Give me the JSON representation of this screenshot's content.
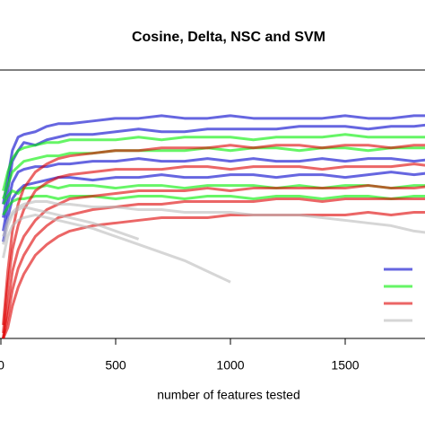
{
  "chart_data": {
    "type": "line",
    "title": "Cosine, Delta, NSC and SVM",
    "x_label": "number of features tested",
    "x": [
      10,
      30,
      50,
      75,
      100,
      150,
      200,
      250,
      300,
      400,
      500,
      600,
      700,
      800,
      900,
      1000,
      1100,
      1200,
      1300,
      1400,
      1500,
      1600,
      1700,
      1800,
      1900
    ],
    "xlim": [
      0,
      1850
    ],
    "xticks": [
      0,
      500,
      1000,
      1500
    ],
    "ylim": [
      0,
      1
    ],
    "legend_colors": [
      "#0000cc",
      "#00ee00",
      "#dd0000",
      "#bbbbbb"
    ],
    "series": [
      {
        "color": "#0000cc",
        "values": [
          0.5,
          0.6,
          0.7,
          0.75,
          0.76,
          0.77,
          0.79,
          0.8,
          0.8,
          0.81,
          0.82,
          0.82,
          0.83,
          0.82,
          0.82,
          0.83,
          0.82,
          0.82,
          0.82,
          0.82,
          0.83,
          0.82,
          0.82,
          0.83,
          0.83
        ]
      },
      {
        "color": "#0000cc",
        "values": [
          0.45,
          0.55,
          0.66,
          0.7,
          0.73,
          0.72,
          0.74,
          0.75,
          0.76,
          0.76,
          0.77,
          0.78,
          0.77,
          0.77,
          0.78,
          0.78,
          0.78,
          0.78,
          0.79,
          0.79,
          0.79,
          0.78,
          0.79,
          0.79,
          0.8
        ]
      },
      {
        "color": "#0000cc",
        "values": [
          0.4,
          0.5,
          0.58,
          0.62,
          0.63,
          0.64,
          0.64,
          0.65,
          0.65,
          0.66,
          0.66,
          0.67,
          0.66,
          0.66,
          0.67,
          0.66,
          0.67,
          0.66,
          0.66,
          0.67,
          0.66,
          0.67,
          0.67,
          0.66,
          0.67
        ]
      },
      {
        "color": "#0000cc",
        "values": [
          0.36,
          0.45,
          0.52,
          0.55,
          0.57,
          0.58,
          0.59,
          0.6,
          0.6,
          0.59,
          0.6,
          0.6,
          0.61,
          0.6,
          0.6,
          0.61,
          0.61,
          0.6,
          0.61,
          0.61,
          0.6,
          0.61,
          0.62,
          0.61,
          0.62
        ]
      },
      {
        "color": "#00ee00",
        "values": [
          0.55,
          0.62,
          0.67,
          0.7,
          0.71,
          0.72,
          0.73,
          0.73,
          0.74,
          0.74,
          0.74,
          0.75,
          0.74,
          0.75,
          0.75,
          0.75,
          0.74,
          0.75,
          0.75,
          0.75,
          0.76,
          0.75,
          0.75,
          0.75,
          0.75
        ]
      },
      {
        "color": "#00ee00",
        "values": [
          0.52,
          0.57,
          0.62,
          0.64,
          0.66,
          0.67,
          0.68,
          0.68,
          0.69,
          0.69,
          0.7,
          0.7,
          0.7,
          0.7,
          0.71,
          0.7,
          0.71,
          0.71,
          0.7,
          0.71,
          0.71,
          0.7,
          0.71,
          0.71,
          0.71
        ]
      },
      {
        "color": "#00ee00",
        "values": [
          0.5,
          0.53,
          0.55,
          0.54,
          0.56,
          0.56,
          0.57,
          0.56,
          0.57,
          0.57,
          0.56,
          0.57,
          0.57,
          0.56,
          0.57,
          0.57,
          0.57,
          0.56,
          0.57,
          0.56,
          0.57,
          0.57,
          0.56,
          0.57,
          0.57
        ]
      },
      {
        "color": "#00ee00",
        "values": [
          0.46,
          0.49,
          0.51,
          0.52,
          0.52,
          0.53,
          0.53,
          0.52,
          0.53,
          0.53,
          0.52,
          0.53,
          0.53,
          0.52,
          0.53,
          0.53,
          0.52,
          0.53,
          0.53,
          0.52,
          0.53,
          0.53,
          0.52,
          0.53,
          0.53
        ]
      },
      {
        "color": "#dd0000",
        "values": [
          0.05,
          0.25,
          0.4,
          0.5,
          0.56,
          0.62,
          0.65,
          0.67,
          0.68,
          0.69,
          0.7,
          0.7,
          0.71,
          0.71,
          0.71,
          0.72,
          0.71,
          0.72,
          0.72,
          0.71,
          0.72,
          0.72,
          0.71,
          0.72,
          0.72
        ]
      },
      {
        "color": "#dd0000",
        "values": [
          0.02,
          0.2,
          0.33,
          0.42,
          0.48,
          0.55,
          0.58,
          0.6,
          0.61,
          0.62,
          0.63,
          0.63,
          0.63,
          0.64,
          0.64,
          0.63,
          0.64,
          0.64,
          0.64,
          0.63,
          0.64,
          0.64,
          0.64,
          0.65,
          0.64
        ]
      },
      {
        "color": "#dd0000",
        "values": [
          0.0,
          0.12,
          0.25,
          0.33,
          0.38,
          0.44,
          0.48,
          0.5,
          0.52,
          0.53,
          0.54,
          0.55,
          0.55,
          0.55,
          0.56,
          0.55,
          0.56,
          0.56,
          0.56,
          0.56,
          0.56,
          0.57,
          0.56,
          0.56,
          0.57
        ]
      },
      {
        "color": "#dd0000",
        "values": [
          0.0,
          0.08,
          0.18,
          0.26,
          0.31,
          0.38,
          0.42,
          0.45,
          0.46,
          0.48,
          0.49,
          0.5,
          0.5,
          0.51,
          0.51,
          0.51,
          0.51,
          0.52,
          0.52,
          0.51,
          0.52,
          0.52,
          0.52,
          0.52,
          0.52
        ]
      },
      {
        "color": "#dd0000",
        "values": [
          0.0,
          0.04,
          0.12,
          0.19,
          0.24,
          0.31,
          0.35,
          0.38,
          0.4,
          0.42,
          0.43,
          0.44,
          0.45,
          0.45,
          0.45,
          0.46,
          0.46,
          0.46,
          0.46,
          0.46,
          0.46,
          0.47,
          0.46,
          0.47,
          0.47
        ]
      },
      {
        "color": "#bbbbbb",
        "values": [
          0.3,
          0.38,
          0.42,
          0.44,
          0.45,
          0.46,
          0.45,
          0.44,
          0.43,
          0.41,
          0.38,
          0.35,
          0.32,
          0.29,
          0.25,
          0.21,
          null,
          null,
          null,
          null,
          null,
          null,
          null,
          null,
          null
        ]
      },
      {
        "color": "#bbbbbb",
        "values": [
          0.35,
          0.42,
          0.46,
          0.48,
          0.49,
          0.48,
          0.47,
          0.46,
          0.45,
          0.43,
          0.4,
          0.37,
          null,
          null,
          null,
          null,
          null,
          null,
          null,
          null,
          null,
          null,
          null,
          null,
          null
        ]
      },
      {
        "color": "#bbbbbb",
        "values": [
          0.38,
          0.44,
          0.47,
          0.49,
          0.5,
          0.51,
          0.51,
          0.5,
          0.5,
          0.49,
          0.49,
          0.48,
          0.48,
          0.47,
          0.47,
          0.47,
          0.46,
          0.46,
          0.46,
          0.45,
          0.44,
          0.43,
          0.42,
          0.4,
          0.39
        ]
      }
    ]
  }
}
